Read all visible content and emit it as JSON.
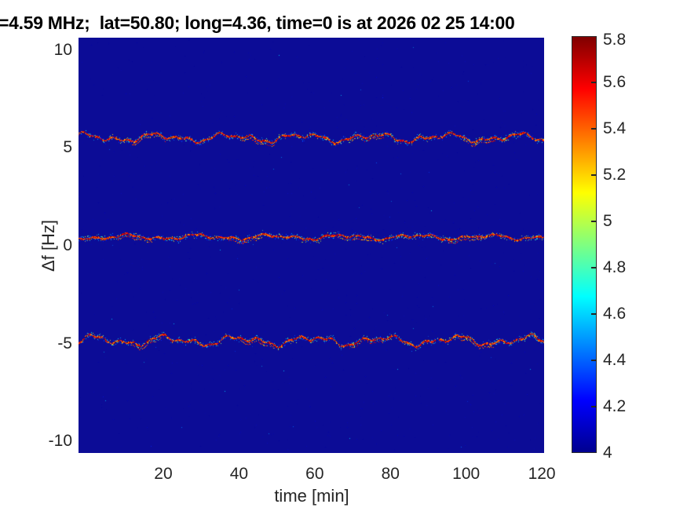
{
  "chart_data": {
    "type": "heatmap",
    "title": "=4.59 MHz;  lat=50.80; long=4.36, time=0 is at 2026 02 25 14:00",
    "xlabel": "time [min]",
    "ylabel": "Δf [Hz]",
    "xlim": [
      -2.4,
      120.6
    ],
    "ylim": [
      -10.6,
      10.64
    ],
    "xticks": [
      20,
      40,
      60,
      80,
      100,
      120
    ],
    "yticks": [
      10,
      5,
      0,
      -5,
      -10
    ],
    "grid": false,
    "legend": "none",
    "colorbar": {
      "min": 4,
      "max": 5.8,
      "ticks": [
        5.8,
        5.6,
        5.4,
        5.2,
        5,
        4.8,
        4.6,
        4.4,
        4.2,
        4
      ],
      "tick_labels": [
        "5.8",
        "5.6",
        "5.4",
        "5.2",
        "5",
        "4.8",
        "4.6",
        "4.4",
        "4.2",
        "4"
      ],
      "colormap": "jet",
      "position": "right"
    },
    "background_value": 4.0,
    "heatmap_background_color": "#0c0c96",
    "traces": [
      {
        "name": "upper-doppler-line",
        "center_hz": 5.53,
        "wiggle_amplitude_hz": 0.13,
        "core_value": 5.6,
        "halo_value_range": [
          4.2,
          5.2
        ]
      },
      {
        "name": "middle-doppler-line",
        "center_hz": 0.45,
        "wiggle_amplitude_hz": 0.08,
        "core_value": 5.6,
        "halo_value_range": [
          4.2,
          5.2
        ]
      },
      {
        "name": "lower-doppler-line",
        "center_hz": -4.85,
        "wiggle_amplitude_hz": 0.15,
        "core_value": 5.6,
        "halo_value_range": [
          4.2,
          5.2
        ]
      }
    ]
  }
}
